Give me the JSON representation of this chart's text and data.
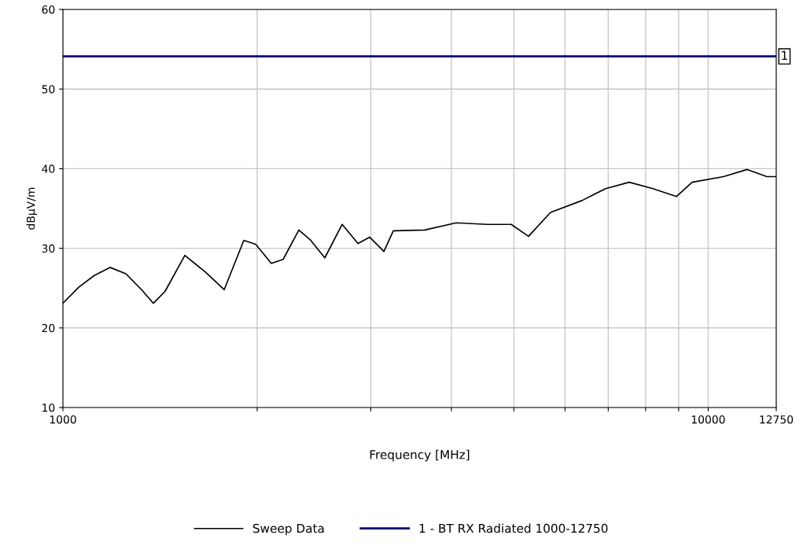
{
  "chart_data": {
    "type": "line",
    "xlabel": "Frequency [MHz]",
    "ylabel": "dBµV/m",
    "log": "x",
    "grid": true,
    "legend": "bottom",
    "line_style": "solid",
    "marker": "none",
    "xlim": [
      1000,
      12750
    ],
    "ylim": [
      10,
      60
    ],
    "xticks": [
      1000,
      {
        "value": 2000,
        "label": null
      },
      {
        "value": 3000,
        "label": null
      },
      {
        "value": 4000,
        "label": null
      },
      {
        "value": 5000,
        "label": null
      },
      {
        "value": 6000,
        "label": null
      },
      {
        "value": 7000,
        "label": null
      },
      {
        "value": 8000,
        "label": null
      },
      {
        "value": 9000,
        "label": null
      },
      10000,
      12750
    ],
    "yticks": [
      10,
      20,
      30,
      40,
      50,
      60
    ],
    "series": [
      {
        "name": "Sweep Data",
        "color": "#000000",
        "x": [
          1000,
          1058,
          1119,
          1183,
          1252,
          1324,
          1381,
          1440,
          1545,
          1658,
          1778,
          1907,
          1989,
          2104,
          2194,
          2321,
          2421,
          2546,
          2709,
          2866,
          2988,
          3144,
          3251,
          3636,
          4069,
          4552,
          4952,
          5267,
          5697,
          6375,
          6936,
          7545,
          8208,
          8929,
          9443,
          10565,
          11495,
          12330,
          12750
        ],
        "values": [
          23.1,
          25.1,
          26.6,
          27.6,
          26.8,
          24.8,
          23.1,
          24.6,
          29.1,
          27.1,
          24.8,
          31.0,
          30.5,
          28.1,
          28.6,
          32.3,
          31.0,
          28.8,
          33.0,
          30.6,
          31.4,
          29.6,
          32.2,
          32.3,
          33.2,
          33.0,
          33.0,
          31.5,
          34.5,
          36.0,
          37.5,
          38.3,
          37.5,
          36.5,
          38.3,
          39.0,
          39.9,
          39.0,
          39.0
        ]
      },
      {
        "name": "1 - BT RX Radiated 1000-12750",
        "color": "#000080",
        "x": [
          1000,
          12750
        ],
        "values": [
          54.1,
          54.1
        ]
      }
    ],
    "annotations": [
      {
        "text": "1",
        "x": 12750,
        "y": 54.1
      }
    ]
  }
}
